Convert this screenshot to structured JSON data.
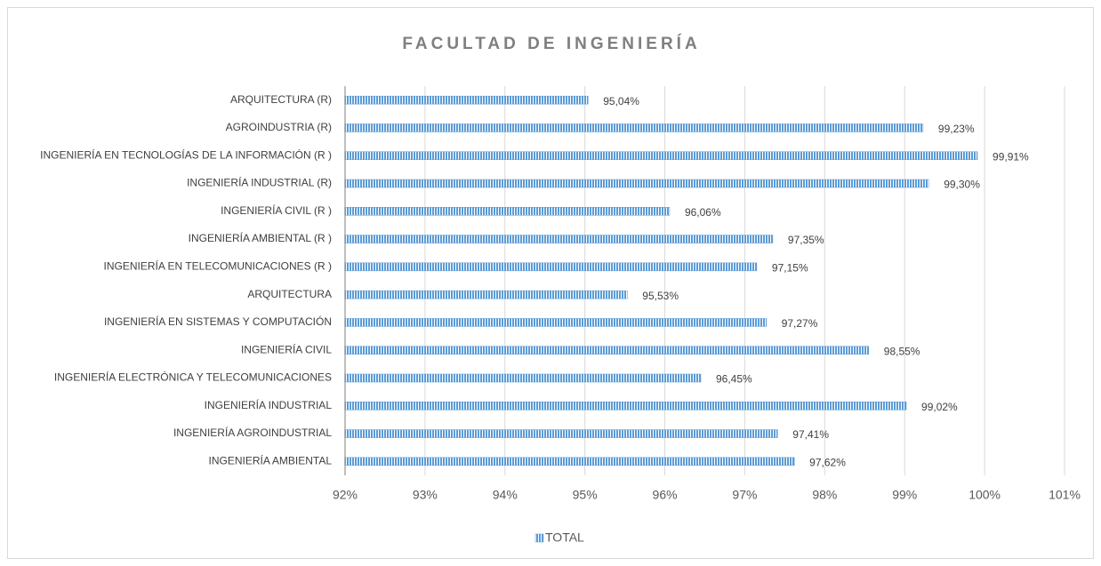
{
  "chart_data": {
    "type": "bar",
    "title": "FACULTAD DE INGENIERÍA",
    "categories": [
      "ARQUITECTURA (R)",
      "AGROINDUSTRIA (R)",
      "INGENIERÍA EN TECNOLOGÍAS DE LA INFORMACIÓN (R )",
      "INGENIERÍA INDUSTRIAL (R)",
      "INGENIERÍA CIVIL (R )",
      "INGENIERÍA AMBIENTAL (R )",
      "INGENIERÍA EN TELECOMUNICACIONES (R )",
      "ARQUITECTURA",
      "INGENIERÍA EN SISTEMAS Y COMPUTACIÓN",
      "INGENIERÍA CIVIL",
      "INGENIERÍA ELECTRÓNICA Y TELECOMUNICACIONES",
      "INGENIERÍA INDUSTRIAL",
      "INGENIERÍA AGROINDUSTRIAL",
      "INGENIERÍA AMBIENTAL"
    ],
    "series": [
      {
        "name": "TOTAL",
        "color": "#5b9bd5",
        "values": [
          95.04,
          99.23,
          99.91,
          99.3,
          96.06,
          97.35,
          97.15,
          95.53,
          97.27,
          98.55,
          96.45,
          99.02,
          97.41,
          97.62
        ],
        "value_labels": [
          "95,04%",
          "99,23%",
          "99,91%",
          "99,30%",
          "96,06%",
          "97,35%",
          "97,15%",
          "95,53%",
          "97,27%",
          "98,55%",
          "96,45%",
          "99,02%",
          "97,41%",
          "97,62%"
        ]
      }
    ],
    "xlim": [
      92,
      101
    ],
    "xticks": [
      {
        "value": 92,
        "label": "92%"
      },
      {
        "value": 93,
        "label": "93%"
      },
      {
        "value": 94,
        "label": "94%"
      },
      {
        "value": 95,
        "label": "95%"
      },
      {
        "value": 96,
        "label": "96%"
      },
      {
        "value": 97,
        "label": "97%"
      },
      {
        "value": 98,
        "label": "98%"
      },
      {
        "value": 99,
        "label": "99%"
      },
      {
        "value": 100,
        "label": "100%"
      },
      {
        "value": 101,
        "label": "101%"
      }
    ],
    "grid": true,
    "legend": "bottom"
  }
}
